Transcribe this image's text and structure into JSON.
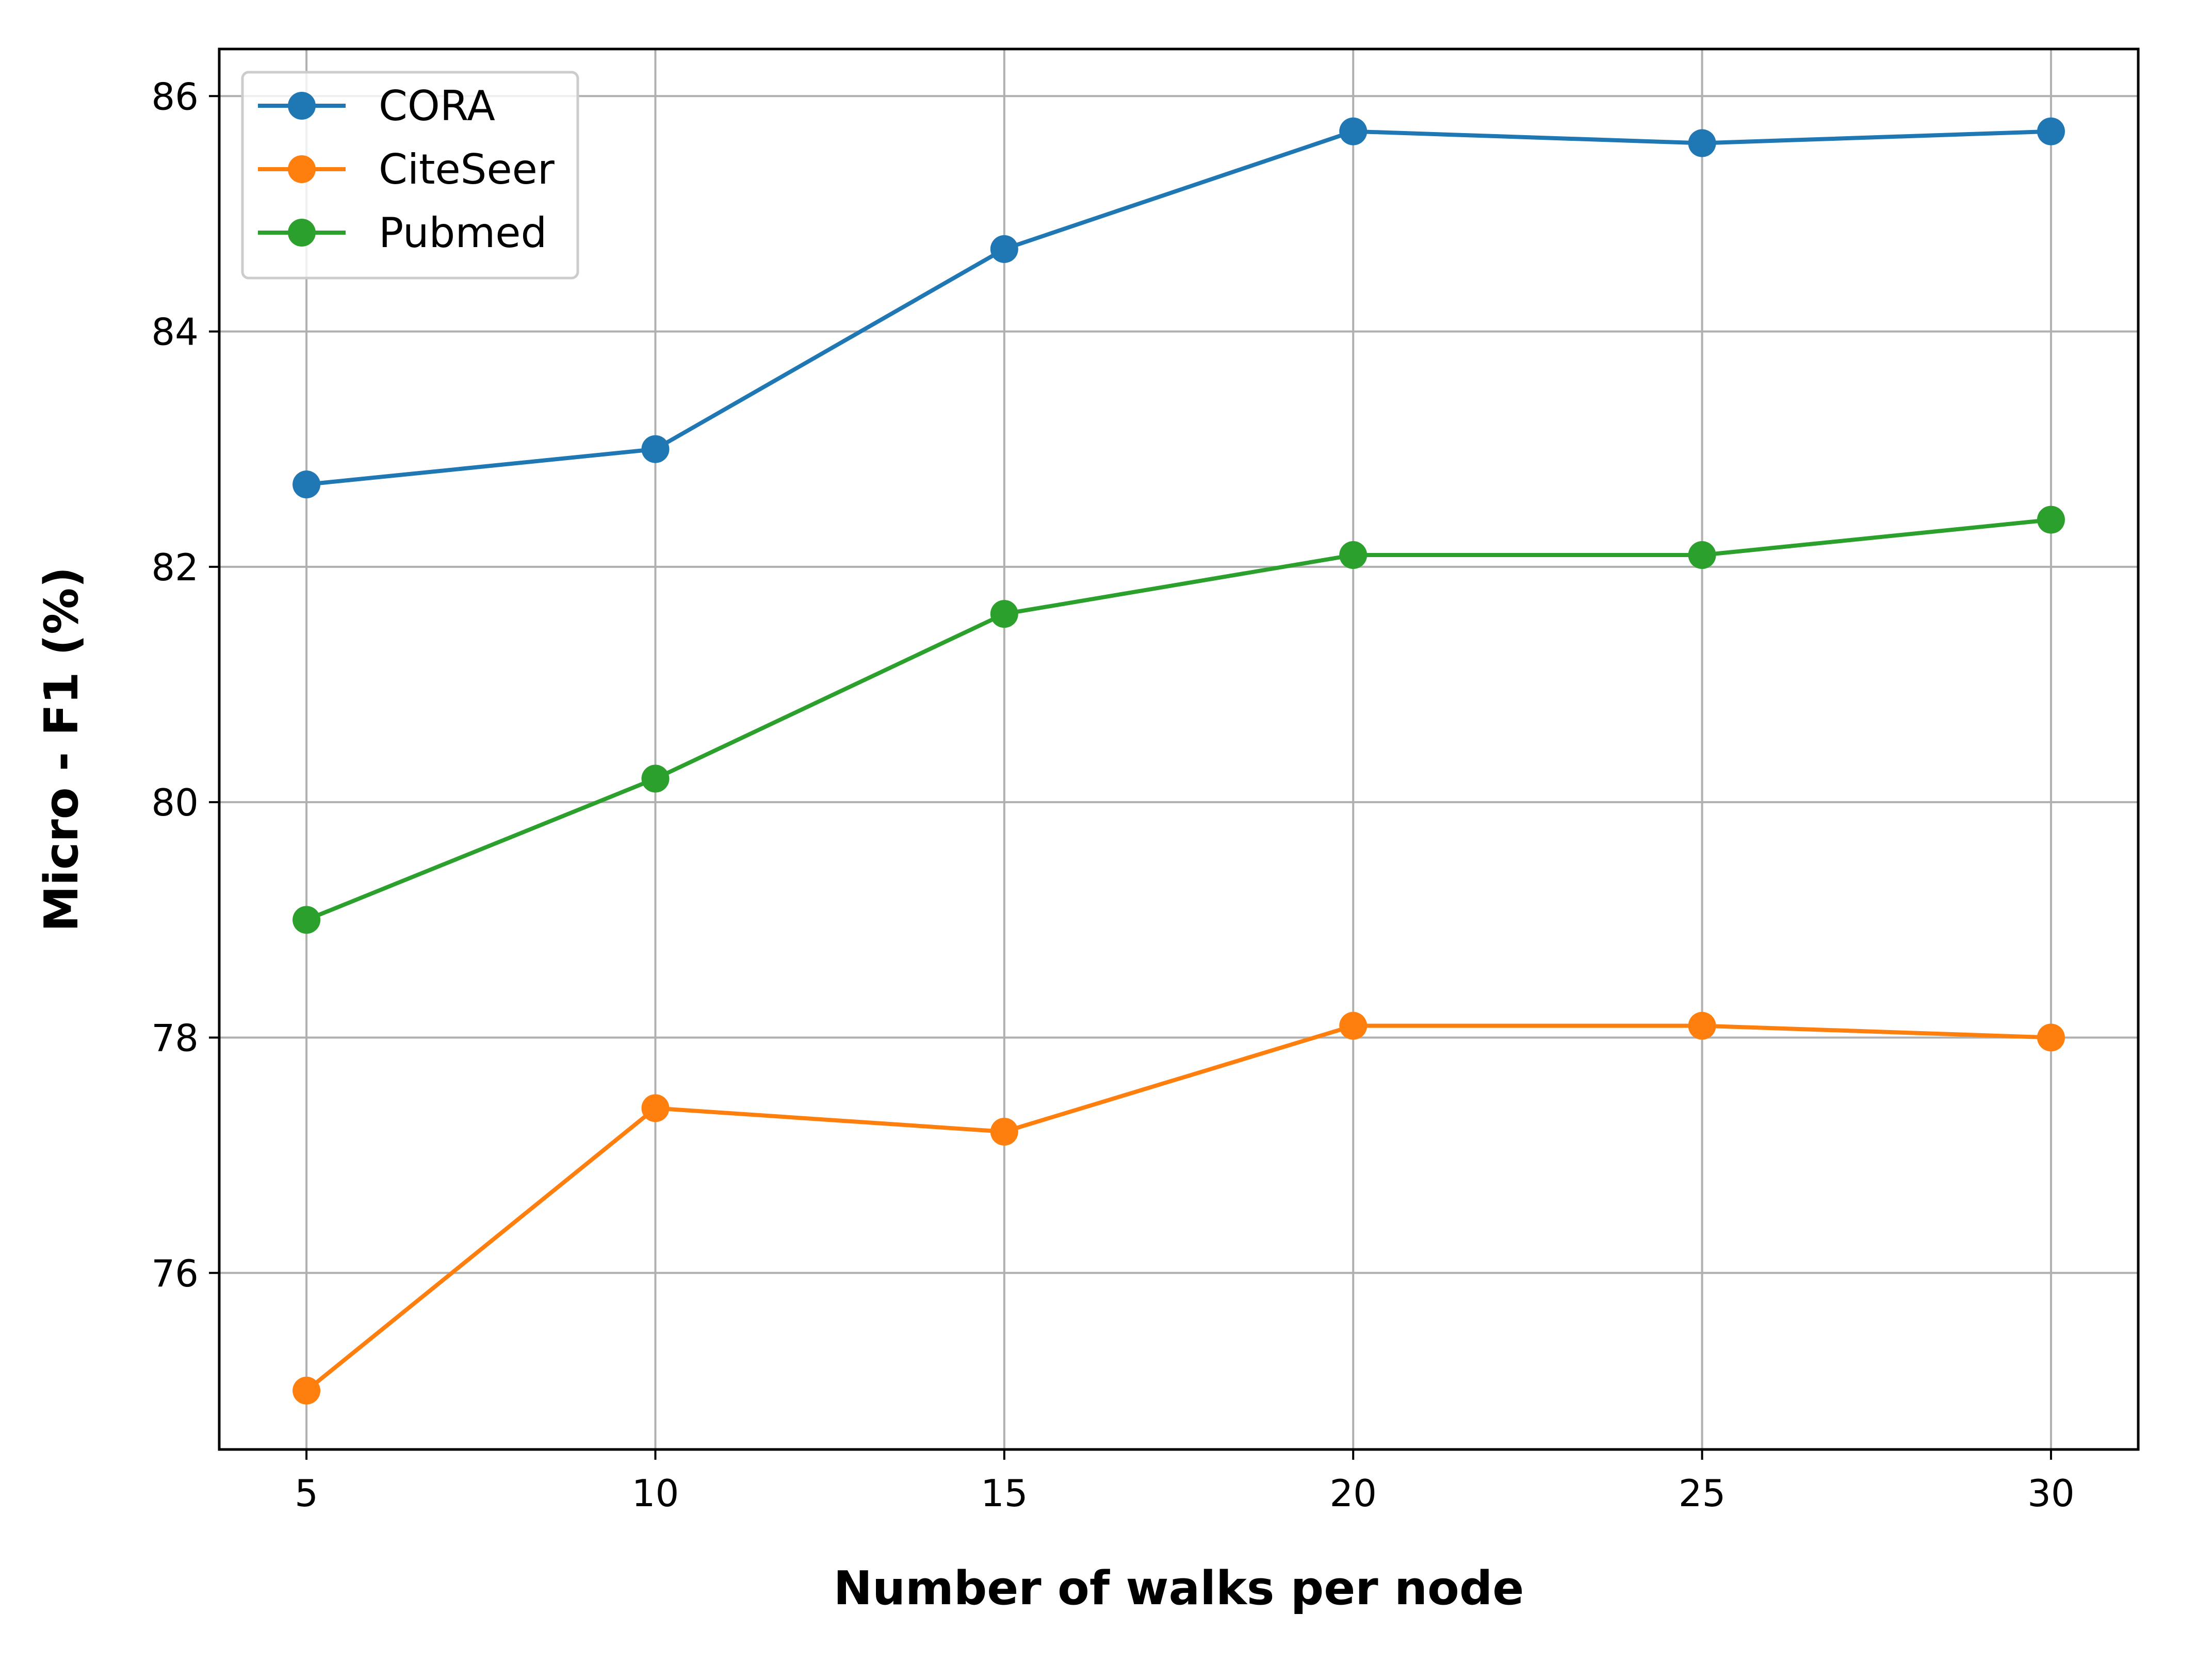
{
  "chart_data": {
    "type": "line",
    "title": "",
    "xlabel": "Number of walks per node",
    "ylabel": "Micro - F1 (%)",
    "x": [
      5,
      10,
      15,
      20,
      25,
      30
    ],
    "xlim": [
      3.75,
      31.25
    ],
    "ylim": [
      74.5,
      86.4
    ],
    "xticks": [
      "5",
      "10",
      "15",
      "20",
      "25",
      "30"
    ],
    "yticks": [
      "76",
      "78",
      "80",
      "82",
      "84",
      "86"
    ],
    "grid": true,
    "legend_position": "top-left",
    "series": [
      {
        "name": "CORA",
        "color": "#1f77b4",
        "values": [
          82.7,
          83.0,
          84.7,
          85.7,
          85.6,
          85.7
        ]
      },
      {
        "name": "CiteSeer",
        "color": "#ff7f0e",
        "values": [
          75.0,
          77.4,
          77.2,
          78.1,
          78.1,
          78.0
        ]
      },
      {
        "name": "Pubmed",
        "color": "#2ca02c",
        "values": [
          79.0,
          80.2,
          81.6,
          82.1,
          82.1,
          82.4
        ]
      }
    ]
  }
}
